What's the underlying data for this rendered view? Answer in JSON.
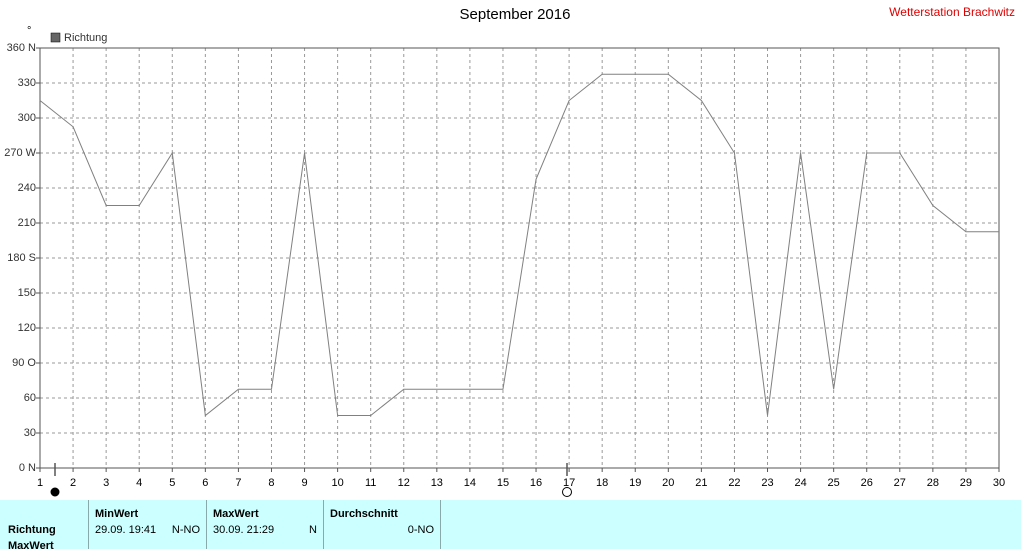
{
  "chart_data": {
    "type": "line",
    "title": "September 2016",
    "station": "Wetterstation Brachwitz",
    "y_label": "°",
    "x": [
      1,
      2,
      3,
      4,
      5,
      6,
      7,
      8,
      9,
      10,
      11,
      12,
      13,
      14,
      15,
      16,
      17,
      18,
      19,
      20,
      21,
      22,
      23,
      24,
      25,
      26,
      27,
      28,
      29,
      30
    ],
    "series": [
      {
        "name": "Richtung",
        "color": "#808080",
        "legend_color": "#666666",
        "values": [
          315,
          292.5,
          225,
          225,
          270,
          45,
          67.5,
          67.5,
          270,
          45,
          45,
          67.5,
          67.5,
          67.5,
          67.5,
          247.5,
          315,
          337.5,
          337.5,
          337.5,
          315,
          270,
          45,
          270,
          67.5,
          270,
          270,
          225,
          202.5,
          202.5
        ]
      }
    ],
    "xlim": [
      1,
      30
    ],
    "xticks": [
      1,
      2,
      3,
      4,
      5,
      6,
      7,
      8,
      9,
      10,
      11,
      12,
      13,
      14,
      15,
      16,
      17,
      18,
      19,
      20,
      21,
      22,
      23,
      24,
      25,
      26,
      27,
      28,
      29,
      30
    ],
    "ylim": [
      0,
      360
    ],
    "yticks": [
      {
        "value": 0,
        "label": "0 N"
      },
      30,
      60,
      {
        "value": 90,
        "label": "90 O"
      },
      120,
      150,
      {
        "value": 180,
        "label": "180 S"
      },
      210,
      240,
      {
        "value": 270,
        "label": "270 W"
      },
      300,
      330,
      {
        "value": 360,
        "label": "360 N"
      }
    ],
    "grid": true
  },
  "table": {
    "row_labels": [
      "Richtung",
      "MaxWert"
    ],
    "columns": [
      {
        "header": "MinWert",
        "date": "29.09.  19:41",
        "value": "N-NO"
      },
      {
        "header": "MaxWert",
        "date": "30.09.  21:29",
        "value": "N"
      },
      {
        "header": "Durchschnitt",
        "date": "",
        "value": "0-NO"
      }
    ]
  }
}
